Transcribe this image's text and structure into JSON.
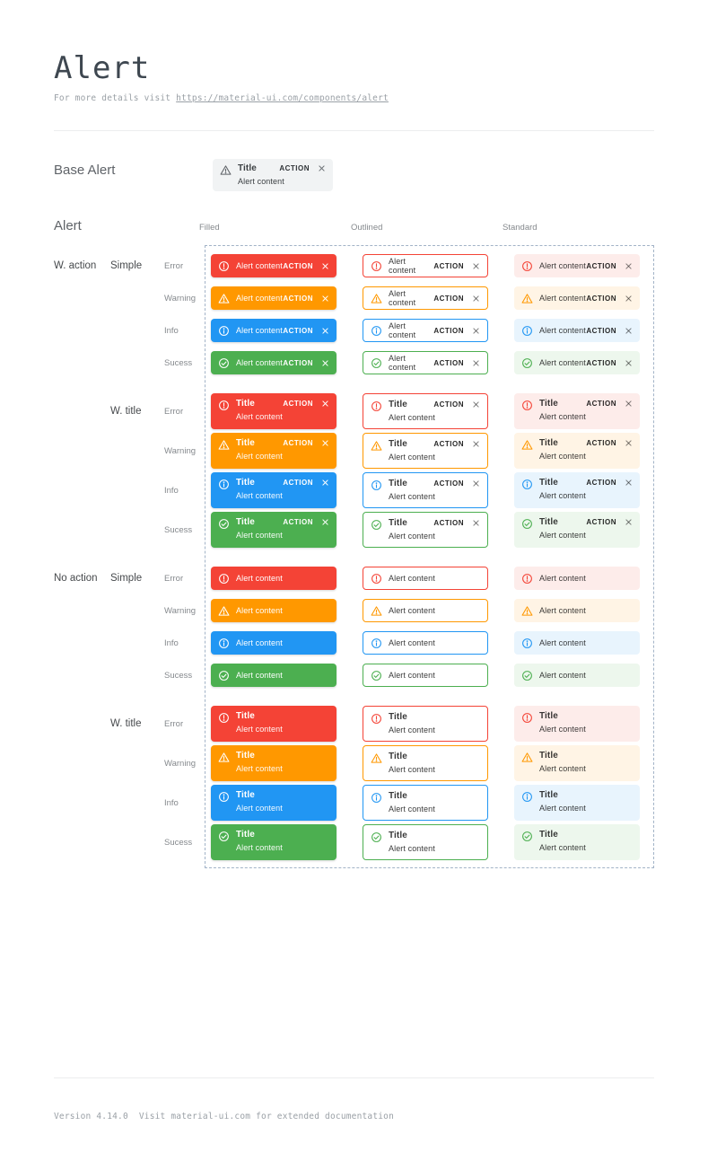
{
  "page": {
    "title": "Alert",
    "subtitle_prefix": "For more details visit ",
    "subtitle_link": "https://material-ui.com/components/alert"
  },
  "base_alert": {
    "section_label": "Base Alert",
    "title": "Title",
    "content": "Alert content",
    "action_label": "ACTION",
    "colors": {
      "main": "#5f6368",
      "bg": "#f1f3f4",
      "text": "#3c4043"
    }
  },
  "alert_grid": {
    "section_label": "Alert",
    "columns": [
      "Filled",
      "Outlined",
      "Standard"
    ],
    "variants": [
      "filled",
      "outlined",
      "standard"
    ],
    "strings": {
      "title": "Title",
      "content": "Alert content",
      "action": "ACTION"
    },
    "severities": [
      {
        "key": "error",
        "label": "Error",
        "main": "#f44336",
        "standard_bg": "#fdecea"
      },
      {
        "key": "warning",
        "label": "Warning",
        "main": "#ff9800",
        "standard_bg": "#fff4e5"
      },
      {
        "key": "info",
        "label": "Info",
        "main": "#2196f3",
        "standard_bg": "#e8f4fd"
      },
      {
        "key": "success",
        "label": "Sucess",
        "main": "#4caf50",
        "standard_bg": "#edf7ed"
      }
    ],
    "groups": [
      {
        "label": "W. action",
        "has_action": true,
        "subgroups": [
          {
            "label": "Simple",
            "titled": false
          },
          {
            "label": "W. title",
            "titled": true
          }
        ]
      },
      {
        "label": "No action",
        "has_action": false,
        "subgroups": [
          {
            "label": "Simple",
            "titled": false
          },
          {
            "label": "W. title",
            "titled": true
          }
        ]
      }
    ]
  },
  "footer": {
    "version": "Version 4.14.0",
    "note": "Visit material-ui.com for extended documentation"
  }
}
